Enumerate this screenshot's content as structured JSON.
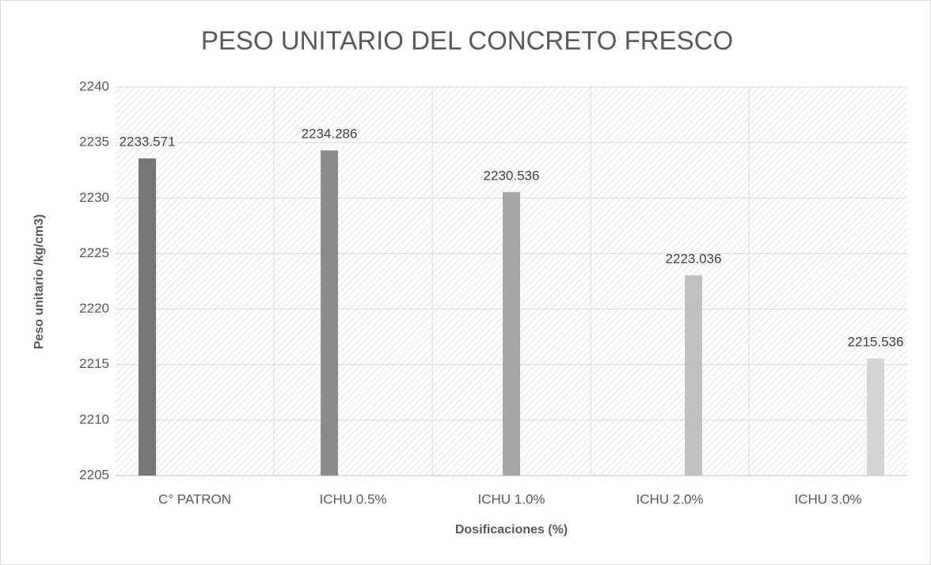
{
  "chart_data": {
    "type": "bar",
    "title": "PESO UNITARIO DEL CONCRETO FRESCO",
    "x_label": "Dosificaciones (%)",
    "y_label": "Peso unitario /kg/cm3)",
    "categories": [
      "C° PATRON",
      "ICHU 0.5%",
      "ICHU 1.0%",
      "ICHU 2.0%",
      "ICHU 3.0%"
    ],
    "series": [
      {
        "color": "#767676",
        "values": [
          2233.571,
          null,
          null,
          null,
          null
        ]
      },
      {
        "color": "#8c8c8c",
        "values": [
          null,
          2234.286,
          null,
          null,
          null
        ]
      },
      {
        "color": "#a6a6a6",
        "values": [
          null,
          null,
          2230.536,
          null,
          null
        ]
      },
      {
        "color": "#bfbfbf",
        "values": [
          null,
          null,
          null,
          2223.036,
          null
        ]
      },
      {
        "color": "#d4d4d4",
        "values": [
          null,
          null,
          null,
          null,
          2215.536
        ]
      }
    ],
    "ylim": [
      2205,
      2240
    ],
    "yticks": [
      2205,
      2210,
      2215,
      2220,
      2225,
      2230,
      2235,
      2240
    ],
    "grid": true
  }
}
